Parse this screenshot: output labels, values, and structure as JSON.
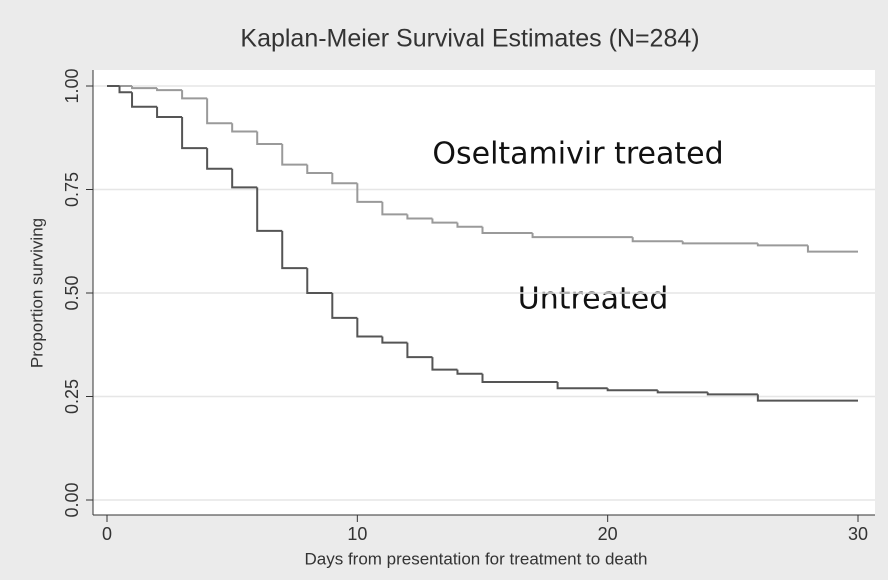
{
  "chart_data": {
    "type": "step",
    "title": "Kaplan-Meier Survival Estimates (N=284)",
    "x_label": "Days from presentation for treatment to death",
    "y_label": "Proportion surviving",
    "series": [
      {
        "name": "Oseltamivir treated",
        "color": "#9a9a9a",
        "x": [
          0,
          1,
          2,
          3,
          4,
          5,
          6,
          7,
          8,
          9,
          10,
          11,
          12,
          13,
          14,
          15,
          17,
          21,
          23,
          26,
          28,
          30
        ],
        "values": [
          1.0,
          0.995,
          0.99,
          0.97,
          0.91,
          0.89,
          0.86,
          0.81,
          0.79,
          0.765,
          0.72,
          0.69,
          0.68,
          0.67,
          0.66,
          0.645,
          0.635,
          0.625,
          0.62,
          0.615,
          0.6,
          0.6
        ]
      },
      {
        "name": "Untreated",
        "color": "#555555",
        "x": [
          0,
          0.5,
          1,
          2,
          3,
          4,
          5,
          6,
          7,
          8,
          9,
          10,
          11,
          12,
          13,
          14,
          15,
          18,
          20,
          22,
          24,
          26,
          30
        ],
        "values": [
          1.0,
          0.985,
          0.95,
          0.925,
          0.85,
          0.8,
          0.755,
          0.65,
          0.56,
          0.5,
          0.44,
          0.395,
          0.38,
          0.345,
          0.315,
          0.305,
          0.285,
          0.27,
          0.265,
          0.26,
          0.255,
          0.24,
          0.24
        ]
      }
    ],
    "xlim": [
      0,
      30
    ],
    "xticks": [
      0,
      10,
      20,
      30
    ],
    "ylim": [
      0,
      1
    ],
    "yticks": [
      {
        "value": 0,
        "label": "0.00"
      },
      {
        "value": 0.25,
        "label": "0.25"
      },
      {
        "value": 0.5,
        "label": "0.50"
      },
      {
        "value": 0.75,
        "label": "0.75"
      },
      {
        "value": 1,
        "label": "1.00"
      }
    ],
    "grid": true
  }
}
